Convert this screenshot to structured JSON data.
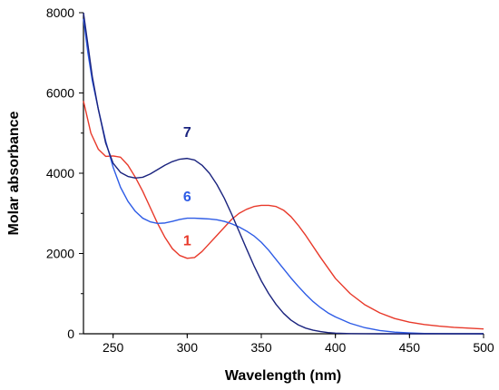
{
  "chart_data": {
    "type": "line",
    "title": "",
    "xlabel": "Wavelength (nm)",
    "ylabel": "Molar absorbance",
    "xlim": [
      230,
      500
    ],
    "ylim": [
      0,
      8000
    ],
    "x_ticks": [
      250,
      300,
      350,
      400,
      450,
      500
    ],
    "y_ticks": [
      0,
      2000,
      4000,
      6000,
      8000
    ],
    "grid": false,
    "legend": "none",
    "series": [
      {
        "name": "1",
        "color": "#e8392a",
        "points": [
          [
            230,
            5800
          ],
          [
            235,
            5000
          ],
          [
            240,
            4600
          ],
          [
            245,
            4420
          ],
          [
            250,
            4430
          ],
          [
            255,
            4400
          ],
          [
            260,
            4200
          ],
          [
            265,
            3900
          ],
          [
            270,
            3550
          ],
          [
            275,
            3150
          ],
          [
            280,
            2750
          ],
          [
            285,
            2400
          ],
          [
            290,
            2120
          ],
          [
            295,
            1950
          ],
          [
            300,
            1880
          ],
          [
            305,
            1900
          ],
          [
            310,
            2050
          ],
          [
            315,
            2250
          ],
          [
            320,
            2450
          ],
          [
            325,
            2650
          ],
          [
            330,
            2850
          ],
          [
            335,
            3000
          ],
          [
            340,
            3100
          ],
          [
            345,
            3170
          ],
          [
            350,
            3200
          ],
          [
            355,
            3200
          ],
          [
            360,
            3170
          ],
          [
            365,
            3080
          ],
          [
            370,
            2920
          ],
          [
            375,
            2700
          ],
          [
            380,
            2450
          ],
          [
            390,
            1900
          ],
          [
            400,
            1380
          ],
          [
            410,
            1000
          ],
          [
            420,
            720
          ],
          [
            430,
            520
          ],
          [
            440,
            380
          ],
          [
            450,
            290
          ],
          [
            460,
            230
          ],
          [
            470,
            190
          ],
          [
            480,
            160
          ],
          [
            490,
            140
          ],
          [
            500,
            120
          ]
        ]
      },
      {
        "name": "6",
        "color": "#2e5ce6",
        "points": [
          [
            230,
            7850
          ],
          [
            233,
            7000
          ],
          [
            236,
            6300
          ],
          [
            240,
            5600
          ],
          [
            245,
            4800
          ],
          [
            250,
            4150
          ],
          [
            255,
            3650
          ],
          [
            260,
            3300
          ],
          [
            265,
            3050
          ],
          [
            270,
            2880
          ],
          [
            275,
            2790
          ],
          [
            280,
            2750
          ],
          [
            285,
            2760
          ],
          [
            290,
            2800
          ],
          [
            295,
            2850
          ],
          [
            300,
            2880
          ],
          [
            305,
            2880
          ],
          [
            310,
            2870
          ],
          [
            315,
            2860
          ],
          [
            320,
            2840
          ],
          [
            325,
            2800
          ],
          [
            330,
            2740
          ],
          [
            335,
            2660
          ],
          [
            340,
            2560
          ],
          [
            345,
            2440
          ],
          [
            350,
            2280
          ],
          [
            355,
            2080
          ],
          [
            360,
            1850
          ],
          [
            365,
            1620
          ],
          [
            370,
            1390
          ],
          [
            375,
            1180
          ],
          [
            380,
            980
          ],
          [
            385,
            800
          ],
          [
            390,
            650
          ],
          [
            395,
            520
          ],
          [
            400,
            420
          ],
          [
            410,
            260
          ],
          [
            420,
            150
          ],
          [
            430,
            80
          ],
          [
            440,
            40
          ],
          [
            450,
            20
          ],
          [
            460,
            8
          ],
          [
            470,
            4
          ],
          [
            480,
            2
          ],
          [
            490,
            1
          ],
          [
            500,
            0
          ]
        ]
      },
      {
        "name": "7",
        "color": "#1a237e",
        "points": [
          [
            230,
            8000
          ],
          [
            233,
            7200
          ],
          [
            236,
            6400
          ],
          [
            240,
            5600
          ],
          [
            245,
            4750
          ],
          [
            250,
            4250
          ],
          [
            255,
            4020
          ],
          [
            260,
            3920
          ],
          [
            265,
            3880
          ],
          [
            270,
            3900
          ],
          [
            275,
            3980
          ],
          [
            280,
            4090
          ],
          [
            285,
            4200
          ],
          [
            290,
            4290
          ],
          [
            295,
            4350
          ],
          [
            300,
            4370
          ],
          [
            305,
            4330
          ],
          [
            310,
            4200
          ],
          [
            315,
            4000
          ],
          [
            320,
            3720
          ],
          [
            325,
            3380
          ],
          [
            330,
            2980
          ],
          [
            335,
            2550
          ],
          [
            340,
            2120
          ],
          [
            345,
            1700
          ],
          [
            350,
            1320
          ],
          [
            355,
            1000
          ],
          [
            360,
            730
          ],
          [
            365,
            510
          ],
          [
            370,
            340
          ],
          [
            375,
            220
          ],
          [
            380,
            140
          ],
          [
            385,
            90
          ],
          [
            390,
            55
          ],
          [
            395,
            30
          ],
          [
            400,
            15
          ],
          [
            410,
            5
          ],
          [
            420,
            1
          ],
          [
            430,
            0
          ],
          [
            500,
            0
          ]
        ]
      }
    ],
    "annotations": [
      {
        "text": "7",
        "series": "7",
        "at_x": 300,
        "at_y": 4900
      },
      {
        "text": "6",
        "series": "6",
        "at_x": 300,
        "at_y": 3300
      },
      {
        "text": "1",
        "series": "1",
        "at_x": 300,
        "at_y": 2200
      }
    ]
  }
}
